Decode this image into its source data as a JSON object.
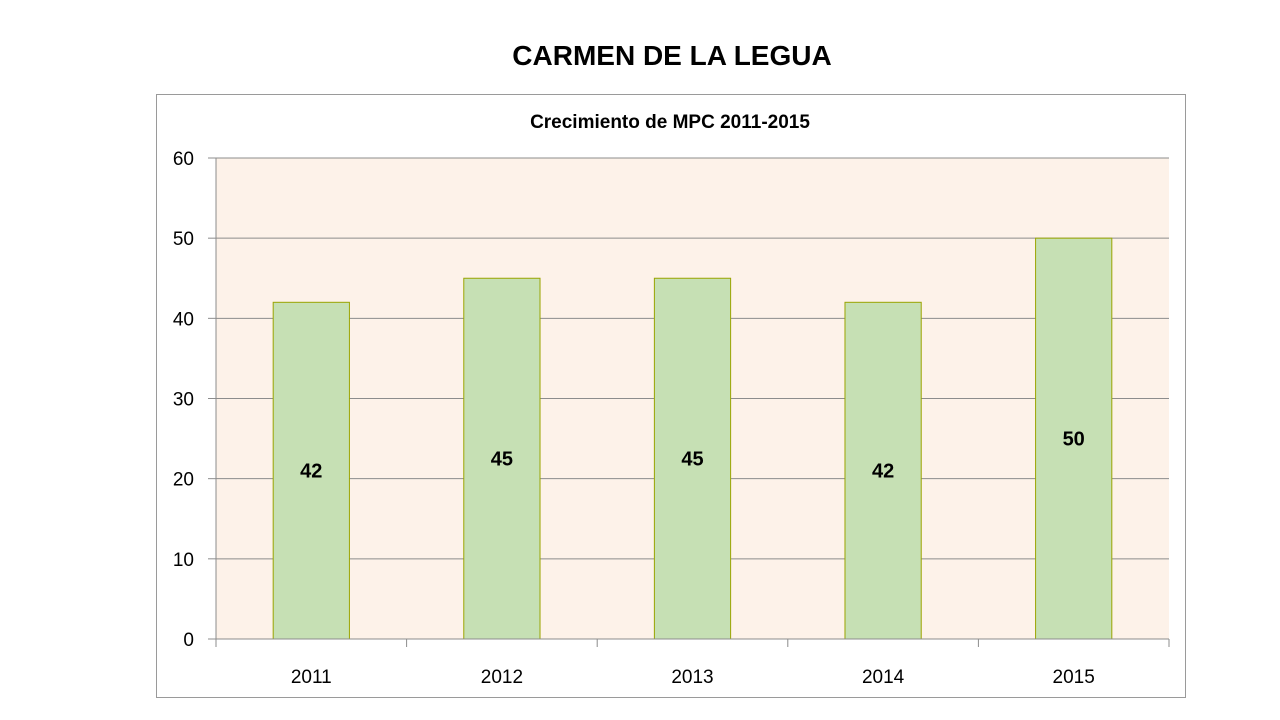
{
  "page": {
    "title": "CARMEN DE LA LEGUA"
  },
  "chart_data": {
    "type": "bar",
    "title": "Crecimiento de MPC 2011-2015",
    "categories": [
      "2011",
      "2012",
      "2013",
      "2014",
      "2015"
    ],
    "values": [
      42,
      45,
      45,
      42,
      50
    ],
    "data_labels": [
      "42",
      "45",
      "45",
      "42",
      "50"
    ],
    "y_ticks": [
      "0",
      "10",
      "20",
      "30",
      "40",
      "50",
      "60"
    ],
    "ylim": [
      0,
      60
    ],
    "grid": true,
    "legend": "none",
    "colors": {
      "bar_fill": "#c6e0b4",
      "bar_stroke": "#9aa400",
      "plot_background": "#fdf2e9",
      "gridline": "#8c8c8c",
      "axis": "#8c8c8c"
    }
  }
}
